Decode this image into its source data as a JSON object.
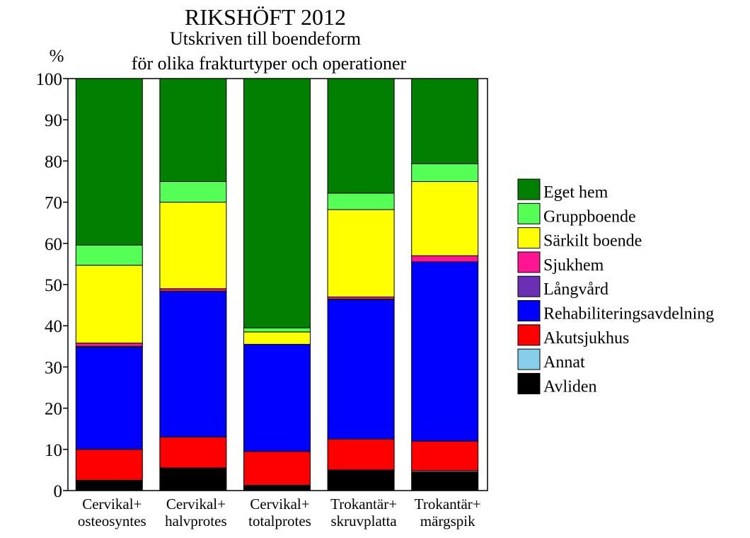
{
  "chart_data": {
    "type": "bar",
    "stacked": true,
    "title": "RIKSHÖFT 2012",
    "subtitle_lines": [
      "Utskriven till boendeform",
      "för olika frakturtyper och operationer"
    ],
    "ylabel": "%",
    "ylim": [
      0,
      100
    ],
    "yticks": [
      0,
      10,
      20,
      30,
      40,
      50,
      60,
      70,
      80,
      90,
      100
    ],
    "grid": false,
    "legend_position": "right",
    "categories": [
      [
        "Cervikal+",
        "osteosyntes"
      ],
      [
        "Cervikal+",
        "halvprotes"
      ],
      [
        "Cervikal+",
        "totalprotes"
      ],
      [
        "Trokantär+",
        "skruvplatta"
      ],
      [
        "Trokantär+",
        "märgspik"
      ]
    ],
    "series": [
      {
        "name": "Avliden",
        "color": "#000000",
        "values": [
          2.5,
          5.5,
          1.3,
          5.0,
          4.5
        ]
      },
      {
        "name": "Annat",
        "color": "#87ceeb",
        "values": [
          0.0,
          0.0,
          0.0,
          0.0,
          0.3
        ]
      },
      {
        "name": "Akutsjukhus",
        "color": "#ff0000",
        "values": [
          7.5,
          7.5,
          8.2,
          7.5,
          7.2
        ]
      },
      {
        "name": "Rehabiliteringsavdelning",
        "color": "#0000ff",
        "values": [
          24.8,
          35.3,
          26.0,
          33.8,
          43.5
        ]
      },
      {
        "name": "Långvård",
        "color": "#6a2fb5",
        "values": [
          0.2,
          0.1,
          0.0,
          0.2,
          0.0
        ]
      },
      {
        "name": "Sjukhem",
        "color": "#ff1493",
        "values": [
          0.8,
          0.6,
          0.0,
          0.5,
          1.5
        ]
      },
      {
        "name": "Särkilt boende",
        "color": "#ffff00",
        "values": [
          18.9,
          21.0,
          3.0,
          21.2,
          18.0
        ]
      },
      {
        "name": "Gruppboende",
        "color": "#55ff55",
        "values": [
          4.9,
          5.0,
          1.0,
          4.0,
          4.3
        ]
      },
      {
        "name": "Eget hem",
        "color": "#007f00",
        "values": [
          40.4,
          25.0,
          60.5,
          27.8,
          20.7
        ]
      }
    ],
    "legend_order": [
      "Eget hem",
      "Gruppboende",
      "Särkilt boende",
      "Sjukhem",
      "Långvård",
      "Rehabiliteringsavdelning",
      "Akutsjukhus",
      "Annat",
      "Avliden"
    ]
  }
}
